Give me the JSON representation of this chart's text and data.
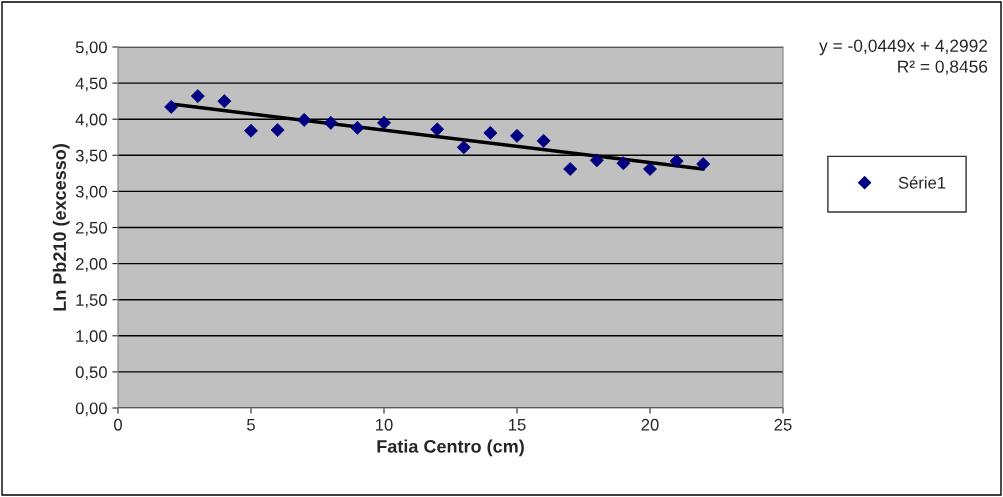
{
  "chart_data": {
    "type": "scatter",
    "xlabel": "Fatia Centro (cm)",
    "ylabel": "Ln Pb210 (excesso)",
    "x": [
      2,
      3,
      4,
      5,
      6,
      7,
      8,
      9,
      10,
      12,
      13,
      14,
      15,
      16,
      17,
      18,
      19,
      20,
      21,
      22
    ],
    "series": [
      {
        "name": "Série1",
        "color": "#000080",
        "values": [
          4.17,
          4.32,
          4.25,
          3.84,
          3.85,
          3.99,
          3.95,
          3.88,
          3.95,
          3.86,
          3.61,
          3.81,
          3.77,
          3.7,
          3.31,
          3.43,
          3.39,
          3.31,
          3.42,
          3.38
        ]
      },
      {
        "type": "line",
        "color": "#000000",
        "x": [
          2,
          22
        ],
        "values": [
          4.21,
          3.31
        ],
        "marker": "none"
      }
    ],
    "annotations": [
      "y = -0,0449x + 4,2992",
      "R² = 0,8456"
    ],
    "xlim": [
      0,
      25
    ],
    "xticks": [
      0,
      5,
      10,
      15,
      20,
      25
    ],
    "ylim": [
      0,
      5
    ],
    "yticks": [
      {
        "value": 0,
        "label": "0,00"
      },
      {
        "value": 0.5,
        "label": "0,50"
      },
      {
        "value": 1,
        "label": "1,00"
      },
      {
        "value": 1.5,
        "label": "1,50"
      },
      {
        "value": 2,
        "label": "2,00"
      },
      {
        "value": 2.5,
        "label": "2,50"
      },
      {
        "value": 3,
        "label": "3,00"
      },
      {
        "value": 3.5,
        "label": "3,50"
      },
      {
        "value": 4,
        "label": "4,00"
      },
      {
        "value": 4.5,
        "label": "4,50"
      },
      {
        "value": 5,
        "label": "5,00"
      }
    ],
    "grid": "y",
    "legend": "right",
    "marker": "diamond"
  }
}
